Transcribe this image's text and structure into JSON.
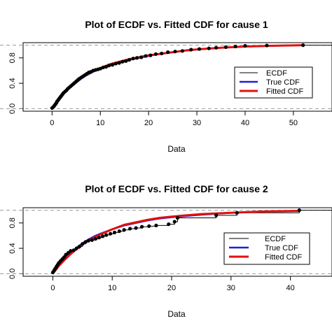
{
  "chart_data": [
    {
      "type": "line",
      "title": "Plot of ECDF vs. Fitted CDF for cause 1",
      "xlabel": "Data",
      "ylabel": "",
      "xlim": [
        -6,
        58
      ],
      "ylim": [
        -0.04,
        1.04
      ],
      "xticks": [
        "0",
        "10",
        "20",
        "30",
        "40",
        "50"
      ],
      "yticks": [
        "0.0",
        "0.4",
        "0.8"
      ],
      "hlines": [
        0,
        1
      ],
      "legend": {
        "position": "right",
        "items": [
          "ECDF",
          "True CDF",
          "Fitted CDF"
        ]
      },
      "colors": {
        "ecdf": "#000000",
        "true_cdf": "#1f1fd6",
        "fitted_cdf": "#e01010",
        "refline": "#9a9a9a"
      },
      "series": [
        {
          "name": "ECDF",
          "type": "step-points",
          "x": [
            0.0,
            0.3,
            0.5,
            0.7,
            0.9,
            1.0,
            1.2,
            1.4,
            1.6,
            1.8,
            2.0,
            2.2,
            2.4,
            2.7,
            3.0,
            3.2,
            3.5,
            3.8,
            4.1,
            4.4,
            4.7,
            5.0,
            5.3,
            5.6,
            6.0,
            6.4,
            6.8,
            7.2,
            7.6,
            8.0,
            8.5,
            9.0,
            9.5,
            10.0,
            10.6,
            11.2,
            11.8,
            12.5,
            13.2,
            13.9,
            14.6,
            15.3,
            16.0,
            16.8,
            17.6,
            18.5,
            19.4,
            20.4,
            21.5,
            22.7,
            24.0,
            25.5,
            27.0,
            28.8,
            30.5,
            32.5,
            34.0,
            36.0,
            38.0,
            40.0,
            44.5,
            52.0
          ],
          "y": [
            0.01,
            0.03,
            0.05,
            0.07,
            0.09,
            0.11,
            0.13,
            0.15,
            0.17,
            0.19,
            0.21,
            0.23,
            0.25,
            0.27,
            0.29,
            0.31,
            0.33,
            0.35,
            0.37,
            0.39,
            0.41,
            0.43,
            0.45,
            0.47,
            0.49,
            0.51,
            0.53,
            0.55,
            0.57,
            0.58,
            0.6,
            0.61,
            0.62,
            0.63,
            0.65,
            0.66,
            0.68,
            0.69,
            0.71,
            0.72,
            0.74,
            0.75,
            0.77,
            0.79,
            0.8,
            0.81,
            0.83,
            0.84,
            0.86,
            0.87,
            0.89,
            0.9,
            0.91,
            0.93,
            0.94,
            0.95,
            0.96,
            0.97,
            0.98,
            0.99,
            0.995,
            1.0
          ]
        },
        {
          "name": "True CDF",
          "x": [
            0,
            1,
            2,
            3,
            4,
            5,
            6,
            7,
            8,
            9,
            10,
            12,
            14,
            16,
            18,
            20,
            22,
            25,
            28,
            31,
            35,
            40,
            45,
            52
          ],
          "y": [
            0.0,
            0.11,
            0.2,
            0.28,
            0.35,
            0.41,
            0.47,
            0.52,
            0.56,
            0.6,
            0.63,
            0.69,
            0.73,
            0.77,
            0.8,
            0.83,
            0.86,
            0.89,
            0.92,
            0.94,
            0.96,
            0.98,
            0.99,
            1.0
          ]
        },
        {
          "name": "Fitted CDF",
          "x": [
            0,
            1,
            2,
            3,
            4,
            5,
            6,
            7,
            8,
            9,
            10,
            12,
            14,
            16,
            18,
            20,
            22,
            25,
            28,
            31,
            35,
            40,
            45,
            52
          ],
          "y": [
            0.0,
            0.12,
            0.21,
            0.29,
            0.36,
            0.42,
            0.48,
            0.53,
            0.57,
            0.61,
            0.64,
            0.7,
            0.74,
            0.78,
            0.81,
            0.84,
            0.86,
            0.89,
            0.92,
            0.94,
            0.96,
            0.98,
            0.99,
            1.0
          ]
        }
      ]
    },
    {
      "type": "line",
      "title": "Plot of ECDF vs. Fitted CDF for cause 2",
      "xlabel": "Data",
      "ylabel": "",
      "xlim": [
        -5,
        47
      ],
      "ylim": [
        -0.04,
        1.04
      ],
      "xticks": [
        "0",
        "10",
        "20",
        "30",
        "40"
      ],
      "yticks": [
        "0.0",
        "0.4",
        "0.8"
      ],
      "hlines": [
        0,
        1
      ],
      "legend": {
        "position": "right",
        "items": [
          "ECDF",
          "True CDF",
          "Fitted CDF"
        ]
      },
      "colors": {
        "ecdf": "#000000",
        "true_cdf": "#1f1fd6",
        "fitted_cdf": "#e01010",
        "refline": "#9a9a9a"
      },
      "series": [
        {
          "name": "ECDF",
          "type": "step-points",
          "x": [
            0.0,
            0.2,
            0.4,
            0.6,
            0.8,
            1.0,
            1.3,
            1.6,
            1.9,
            2.2,
            2.6,
            3.0,
            3.5,
            4.0,
            4.5,
            5.0,
            5.5,
            6.0,
            6.6,
            7.2,
            7.8,
            8.4,
            9.0,
            9.7,
            10.4,
            11.2,
            12.0,
            13.0,
            14.0,
            15.0,
            16.2,
            17.4,
            19.5,
            20.5,
            21.0,
            27.5,
            31.0,
            41.5
          ],
          "y": [
            0.02,
            0.05,
            0.08,
            0.11,
            0.14,
            0.17,
            0.2,
            0.23,
            0.26,
            0.3,
            0.33,
            0.36,
            0.37,
            0.4,
            0.43,
            0.47,
            0.5,
            0.52,
            0.53,
            0.55,
            0.57,
            0.59,
            0.61,
            0.63,
            0.65,
            0.67,
            0.69,
            0.71,
            0.72,
            0.74,
            0.75,
            0.76,
            0.78,
            0.82,
            0.88,
            0.92,
            0.96,
            1.0
          ]
        },
        {
          "name": "True CDF",
          "x": [
            0,
            1,
            2,
            3,
            4,
            5,
            6,
            7,
            8,
            10,
            12,
            14,
            16,
            18,
            20,
            25,
            30,
            35,
            41.5
          ],
          "y": [
            0.0,
            0.13,
            0.24,
            0.33,
            0.41,
            0.48,
            0.54,
            0.59,
            0.63,
            0.7,
            0.76,
            0.8,
            0.84,
            0.87,
            0.89,
            0.93,
            0.96,
            0.98,
            0.99
          ]
        },
        {
          "name": "Fitted CDF",
          "x": [
            0,
            1,
            2,
            3,
            4,
            5,
            6,
            7,
            8,
            10,
            12,
            14,
            16,
            18,
            20,
            25,
            30,
            35,
            41.5
          ],
          "y": [
            0.0,
            0.12,
            0.22,
            0.31,
            0.39,
            0.46,
            0.52,
            0.57,
            0.62,
            0.7,
            0.77,
            0.81,
            0.85,
            0.88,
            0.9,
            0.94,
            0.96,
            0.98,
            0.99
          ]
        }
      ]
    }
  ]
}
